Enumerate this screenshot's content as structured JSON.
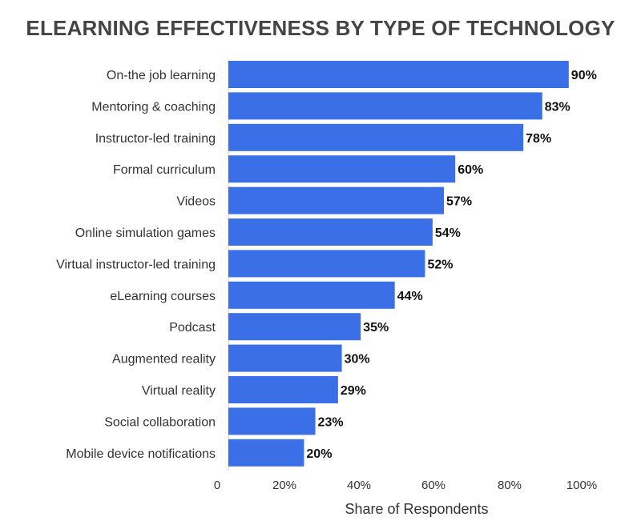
{
  "chart_data": {
    "type": "bar",
    "orientation": "horizontal",
    "title": "ELEARNING EFFECTIVENESS BY TYPE OF TECHNOLOGY",
    "xlabel": "Share of Respondents",
    "ylabel": "",
    "xlim": [
      0,
      100
    ],
    "x_ticks": [
      "0",
      "20%",
      "40%",
      "60%",
      "80%",
      "100%"
    ],
    "categories": [
      "On-the job learning",
      "Mentoring & coaching",
      "Instructor-led training",
      "Formal curriculum",
      "Videos",
      "Online simulation games",
      "Virtual instructor-led training",
      "eLearning courses",
      "Podcast",
      "Augmented reality",
      "Virtual reality",
      "Social collaboration",
      "Mobile device notifications"
    ],
    "values": [
      90,
      83,
      78,
      60,
      57,
      54,
      52,
      44,
      35,
      30,
      29,
      23,
      20
    ],
    "value_labels": [
      "90%",
      "83%",
      "78%",
      "60%",
      "57%",
      "54%",
      "52%",
      "44%",
      "35%",
      "30%",
      "29%",
      "23%",
      "20%"
    ],
    "grid": false,
    "legend": "none",
    "bar_color": "#3a6fe8"
  }
}
